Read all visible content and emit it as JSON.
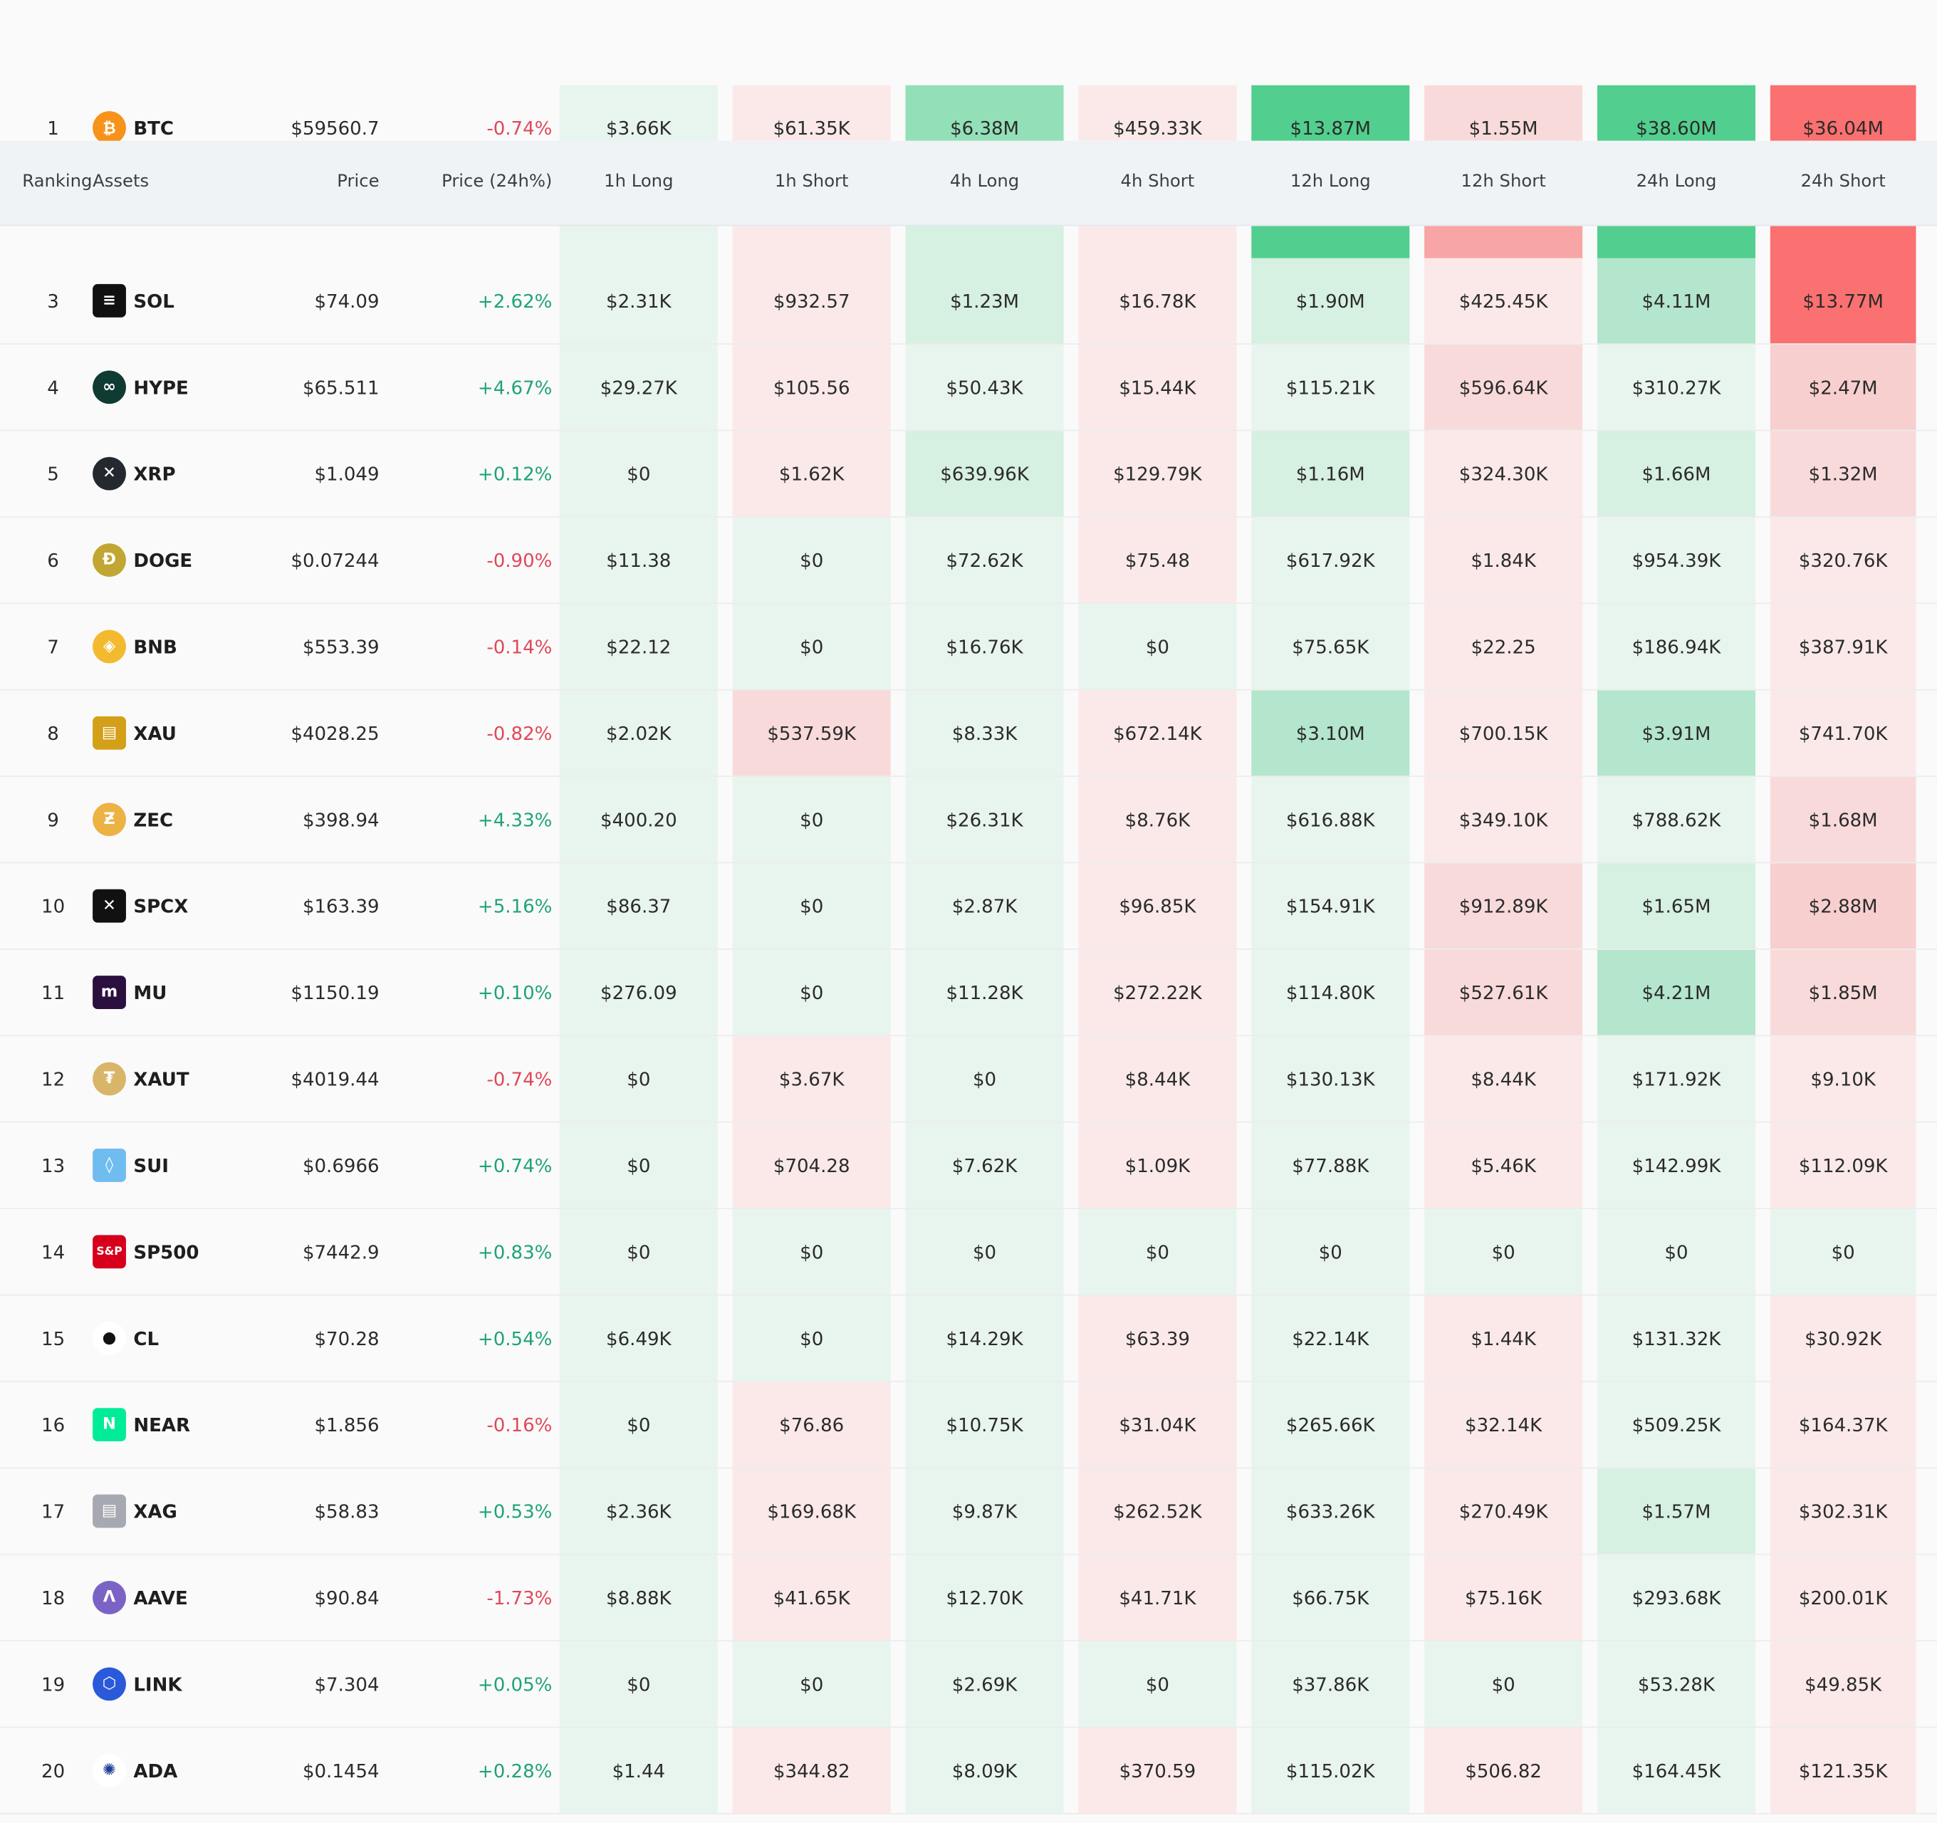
{
  "header": {
    "ranking": "Ranking",
    "assets": "Assets",
    "price": "Price",
    "change": "Price (24h%)",
    "cols": [
      "1h Long",
      "1h Short",
      "4h Long",
      "4h Short",
      "12h Long",
      "12h Short",
      "24h Long",
      "24h Short"
    ]
  },
  "colors": {
    "green_1": "#e8f5ee",
    "green_2": "#d6f0e1",
    "green_3": "#b3e6cc",
    "green_4": "#93e0b8",
    "green_5": "#52cf8e",
    "red_1": "#fbe9e9",
    "red_2": "#f9dada",
    "red_3": "#f8cfcf",
    "red_4": "#f8a5a5",
    "red_5": "#fb7070",
    "up": "#1fa37a",
    "down": "#e0485a"
  },
  "rows": [
    {
      "rank": "1",
      "asset": "BTC",
      "icon": "bitcoin-icon",
      "icon_bg": "#f7931a",
      "glyph": "₿",
      "price": "$59560.7",
      "change": "-0.74%",
      "dir": "down",
      "values": [
        "$3.66K",
        "$61.35K",
        "$6.38M",
        "$459.33K",
        "$13.87M",
        "$1.55M",
        "$38.60M",
        "$36.04M"
      ],
      "levels": [
        "g1",
        "r1",
        "g4",
        "r1",
        "g5",
        "r2",
        "g5",
        "r5"
      ]
    },
    {
      "rank": "3",
      "asset": "SOL",
      "icon": "solana-icon",
      "icon_bg": "#111111",
      "glyph": "≡",
      "price": "$74.09",
      "change": "+2.62%",
      "dir": "up",
      "values": [
        "$2.31K",
        "$932.57",
        "$1.23M",
        "$16.78K",
        "$1.90M",
        "$425.45K",
        "$4.11M",
        "$13.77M"
      ],
      "levels": [
        "g1",
        "r1",
        "g2",
        "r1",
        "g2",
        "r1",
        "g3",
        "r5"
      ]
    },
    {
      "rank": "4",
      "asset": "HYPE",
      "icon": "hyperliquid-icon",
      "icon_bg": "#0f3b33",
      "glyph": "∞",
      "price": "$65.511",
      "change": "+4.67%",
      "dir": "up",
      "values": [
        "$29.27K",
        "$105.56",
        "$50.43K",
        "$15.44K",
        "$115.21K",
        "$596.64K",
        "$310.27K",
        "$2.47M"
      ],
      "levels": [
        "g1",
        "r1",
        "g1",
        "r1",
        "g1",
        "r2",
        "g1",
        "r3"
      ]
    },
    {
      "rank": "5",
      "asset": "XRP",
      "icon": "xrp-icon",
      "icon_bg": "#23292f",
      "glyph": "✕",
      "price": "$1.049",
      "change": "+0.12%",
      "dir": "up",
      "values": [
        "$0",
        "$1.62K",
        "$639.96K",
        "$129.79K",
        "$1.16M",
        "$324.30K",
        "$1.66M",
        "$1.32M"
      ],
      "levels": [
        "g1",
        "r1",
        "g2",
        "r1",
        "g2",
        "r1",
        "g2",
        "r2"
      ]
    },
    {
      "rank": "6",
      "asset": "DOGE",
      "icon": "dogecoin-icon",
      "icon_bg": "#c2a633",
      "glyph": "Ð",
      "price": "$0.07244",
      "change": "-0.90%",
      "dir": "down",
      "values": [
        "$11.38",
        "$0",
        "$72.62K",
        "$75.48",
        "$617.92K",
        "$1.84K",
        "$954.39K",
        "$320.76K"
      ],
      "levels": [
        "g1",
        "g1",
        "g1",
        "r1",
        "g1",
        "r1",
        "g1",
        "r1"
      ]
    },
    {
      "rank": "7",
      "asset": "BNB",
      "icon": "bnb-icon",
      "icon_bg": "#f3ba2f",
      "glyph": "◈",
      "price": "$553.39",
      "change": "-0.14%",
      "dir": "down",
      "values": [
        "$22.12",
        "$0",
        "$16.76K",
        "$0",
        "$75.65K",
        "$22.25",
        "$186.94K",
        "$387.91K"
      ],
      "levels": [
        "g1",
        "g1",
        "g1",
        "g1",
        "g1",
        "r1",
        "g1",
        "r1"
      ]
    },
    {
      "rank": "8",
      "asset": "XAU",
      "icon": "gold-bars-icon",
      "icon_bg": "#d4a017",
      "glyph": "▤",
      "price": "$4028.25",
      "change": "-0.82%",
      "dir": "down",
      "values": [
        "$2.02K",
        "$537.59K",
        "$8.33K",
        "$672.14K",
        "$3.10M",
        "$700.15K",
        "$3.91M",
        "$741.70K"
      ],
      "levels": [
        "g1",
        "r2",
        "g1",
        "r1",
        "g3",
        "r1",
        "g3",
        "r1"
      ]
    },
    {
      "rank": "9",
      "asset": "ZEC",
      "icon": "zcash-icon",
      "icon_bg": "#ecb244",
      "glyph": "Ƶ",
      "price": "$398.94",
      "change": "+4.33%",
      "dir": "up",
      "values": [
        "$400.20",
        "$0",
        "$26.31K",
        "$8.76K",
        "$616.88K",
        "$349.10K",
        "$788.62K",
        "$1.68M"
      ],
      "levels": [
        "g1",
        "g1",
        "g1",
        "r1",
        "g1",
        "r1",
        "g1",
        "r2"
      ]
    },
    {
      "rank": "10",
      "asset": "SPCX",
      "icon": "spacex-icon",
      "icon_bg": "#111111",
      "glyph": "✕",
      "price": "$163.39",
      "change": "+5.16%",
      "dir": "up",
      "values": [
        "$86.37",
        "$0",
        "$2.87K",
        "$96.85K",
        "$154.91K",
        "$912.89K",
        "$1.65M",
        "$2.88M"
      ],
      "levels": [
        "g1",
        "g1",
        "g1",
        "r1",
        "g1",
        "r2",
        "g2",
        "r3"
      ]
    },
    {
      "rank": "11",
      "asset": "MU",
      "icon": "micron-icon",
      "icon_bg": "#2a0f3f",
      "glyph": "m",
      "price": "$1150.19",
      "change": "+0.10%",
      "dir": "up",
      "values": [
        "$276.09",
        "$0",
        "$11.28K",
        "$272.22K",
        "$114.80K",
        "$527.61K",
        "$4.21M",
        "$1.85M"
      ],
      "levels": [
        "g1",
        "g1",
        "g1",
        "r1",
        "g1",
        "r2",
        "g3",
        "r2"
      ]
    },
    {
      "rank": "12",
      "asset": "XAUT",
      "icon": "tether-gold-icon",
      "icon_bg": "#d9b56a",
      "glyph": "₮",
      "price": "$4019.44",
      "change": "-0.74%",
      "dir": "down",
      "values": [
        "$0",
        "$3.67K",
        "$0",
        "$8.44K",
        "$130.13K",
        "$8.44K",
        "$171.92K",
        "$9.10K"
      ],
      "levels": [
        "g1",
        "r1",
        "g1",
        "r1",
        "g1",
        "r1",
        "g1",
        "r1"
      ]
    },
    {
      "rank": "13",
      "asset": "SUI",
      "icon": "sui-icon",
      "icon_bg": "#6fbcf0",
      "glyph": "◊",
      "price": "$0.6966",
      "change": "+0.74%",
      "dir": "up",
      "values": [
        "$0",
        "$704.28",
        "$7.62K",
        "$1.09K",
        "$77.88K",
        "$5.46K",
        "$142.99K",
        "$112.09K"
      ],
      "levels": [
        "g1",
        "r1",
        "g1",
        "r1",
        "g1",
        "r1",
        "g1",
        "r1"
      ]
    },
    {
      "rank": "14",
      "asset": "SP500",
      "icon": "sp500-icon",
      "icon_bg": "#d6001c",
      "glyph": "S&P",
      "price": "$7442.9",
      "change": "+0.83%",
      "dir": "up",
      "values": [
        "$0",
        "$0",
        "$0",
        "$0",
        "$0",
        "$0",
        "$0",
        "$0"
      ],
      "levels": [
        "g1",
        "g1",
        "g1",
        "g1",
        "g1",
        "g1",
        "g1",
        "g1"
      ]
    },
    {
      "rank": "15",
      "asset": "CL",
      "icon": "oil-drop-icon",
      "icon_bg": "#ffffff",
      "glyph": "●",
      "price": "$70.28",
      "change": "+0.54%",
      "dir": "up",
      "values": [
        "$6.49K",
        "$0",
        "$14.29K",
        "$63.39",
        "$22.14K",
        "$1.44K",
        "$131.32K",
        "$30.92K"
      ],
      "levels": [
        "g1",
        "g1",
        "g1",
        "r1",
        "g1",
        "r1",
        "g1",
        "r1"
      ]
    },
    {
      "rank": "16",
      "asset": "NEAR",
      "icon": "near-icon",
      "icon_bg": "#00ec97",
      "glyph": "N",
      "price": "$1.856",
      "change": "-0.16%",
      "dir": "down",
      "values": [
        "$0",
        "$76.86",
        "$10.75K",
        "$31.04K",
        "$265.66K",
        "$32.14K",
        "$509.25K",
        "$164.37K"
      ],
      "levels": [
        "g1",
        "r1",
        "g1",
        "r1",
        "g1",
        "r1",
        "g1",
        "r1"
      ]
    },
    {
      "rank": "17",
      "asset": "XAG",
      "icon": "silver-bars-icon",
      "icon_bg": "#a7a9b2",
      "glyph": "▤",
      "price": "$58.83",
      "change": "+0.53%",
      "dir": "up",
      "values": [
        "$2.36K",
        "$169.68K",
        "$9.87K",
        "$262.52K",
        "$633.26K",
        "$270.49K",
        "$1.57M",
        "$302.31K"
      ],
      "levels": [
        "g1",
        "r1",
        "g1",
        "r1",
        "g1",
        "r1",
        "g2",
        "r1"
      ]
    },
    {
      "rank": "18",
      "asset": "AAVE",
      "icon": "aave-icon",
      "icon_bg": "#7b63c6",
      "glyph": "Λ",
      "price": "$90.84",
      "change": "-1.73%",
      "dir": "down",
      "values": [
        "$8.88K",
        "$41.65K",
        "$12.70K",
        "$41.71K",
        "$66.75K",
        "$75.16K",
        "$293.68K",
        "$200.01K"
      ],
      "levels": [
        "g1",
        "r1",
        "g1",
        "r1",
        "g1",
        "r1",
        "g1",
        "r1"
      ]
    },
    {
      "rank": "19",
      "asset": "LINK",
      "icon": "chainlink-icon",
      "icon_bg": "#2a5ada",
      "glyph": "⬡",
      "price": "$7.304",
      "change": "+0.05%",
      "dir": "up",
      "values": [
        "$0",
        "$0",
        "$2.69K",
        "$0",
        "$37.86K",
        "$0",
        "$53.28K",
        "$49.85K"
      ],
      "levels": [
        "g1",
        "g1",
        "g1",
        "g1",
        "g1",
        "g1",
        "g1",
        "r1"
      ]
    },
    {
      "rank": "20",
      "asset": "ADA",
      "icon": "cardano-icon",
      "icon_bg": "#ffffff",
      "glyph": "✺",
      "price": "$0.1454",
      "change": "+0.28%",
      "dir": "up",
      "values": [
        "$1.44",
        "$344.82",
        "$8.09K",
        "$370.59",
        "$115.02K",
        "$506.82",
        "$164.45K",
        "$121.35K"
      ],
      "levels": [
        "g1",
        "r1",
        "g1",
        "r1",
        "g1",
        "r1",
        "g1",
        "r1"
      ]
    }
  ],
  "row2_partial": {
    "levels": [
      "g1",
      "r1",
      "g2",
      "r1",
      "g5",
      "r4",
      "g5",
      "r5"
    ]
  }
}
